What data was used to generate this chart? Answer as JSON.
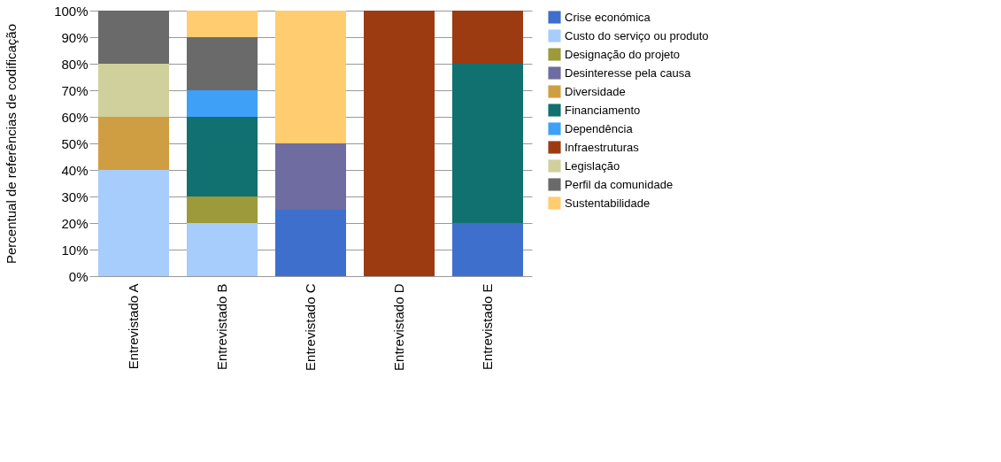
{
  "chart_data": {
    "type": "bar",
    "stacked": true,
    "ylabel": "Percentual de referências de codificação",
    "categories": [
      "Entrevistado A",
      "Entrevistado B",
      "Entrevistado C",
      "Entrevistado D",
      "Entrevistado E"
    ],
    "series": [
      {
        "name": "Crise económica",
        "color": "#3f6fcc",
        "values": [
          null,
          null,
          25,
          null,
          20
        ]
      },
      {
        "name": "Custo do serviço ou produto",
        "color": "#a6cdfb",
        "values": [
          40,
          20,
          null,
          null,
          null
        ]
      },
      {
        "name": "Designação do projeto",
        "color": "#9c9a3a",
        "values": [
          null,
          10,
          null,
          null,
          null
        ]
      },
      {
        "name": "Desinteresse pela causa",
        "color": "#6e6ca0",
        "values": [
          null,
          null,
          25,
          null,
          null
        ]
      },
      {
        "name": "Diversidade",
        "color": "#d09e42",
        "values": [
          20,
          null,
          null,
          null,
          null
        ]
      },
      {
        "name": "Financiamento",
        "color": "#117070",
        "values": [
          null,
          30,
          null,
          null,
          60
        ]
      },
      {
        "name": "Dependência",
        "color": "#3fa0f8",
        "values": [
          null,
          10,
          null,
          null,
          null
        ]
      },
      {
        "name": "Infraestruturas",
        "color": "#9c3b12",
        "values": [
          null,
          null,
          null,
          100,
          20
        ]
      },
      {
        "name": "Legislação",
        "color": "#d0d09c",
        "values": [
          20,
          null,
          null,
          null,
          null
        ]
      },
      {
        "name": "Perfil da comunidade",
        "color": "#6a6a6a",
        "values": [
          20,
          20,
          null,
          null,
          null
        ]
      },
      {
        "name": "Sustentabilidade",
        "color": "#ffcc70",
        "values": [
          null,
          10,
          50,
          null,
          null
        ]
      }
    ],
    "ylim": [
      0,
      100
    ],
    "yticks": [
      {
        "value": 0,
        "label": "0%"
      },
      {
        "value": 10,
        "label": "10%"
      },
      {
        "value": 20,
        "label": "20%"
      },
      {
        "value": 30,
        "label": "30%"
      },
      {
        "value": 40,
        "label": "40%"
      },
      {
        "value": 50,
        "label": "50%"
      },
      {
        "value": 60,
        "label": "60%"
      },
      {
        "value": 70,
        "label": "70%"
      },
      {
        "value": 80,
        "label": "80%"
      },
      {
        "value": 90,
        "label": "90%"
      },
      {
        "value": 100,
        "label": "100%"
      }
    ],
    "grid": "y",
    "legend": "right"
  }
}
